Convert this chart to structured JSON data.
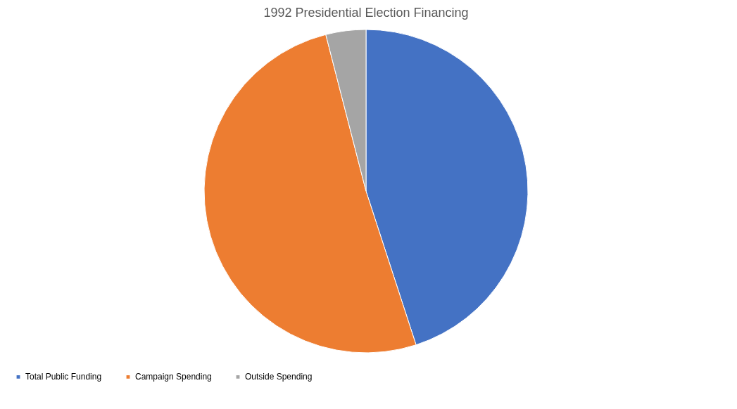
{
  "chart_data": {
    "type": "pie",
    "title": "1992 Presidential Election Financing",
    "categories": [
      "Total Public Funding",
      "Campaign Spending",
      "Outside Spending"
    ],
    "values": [
      45,
      51,
      4
    ],
    "colors": [
      "#4472c4",
      "#ed7d31",
      "#a5a5a5"
    ],
    "legend": "bottom"
  }
}
